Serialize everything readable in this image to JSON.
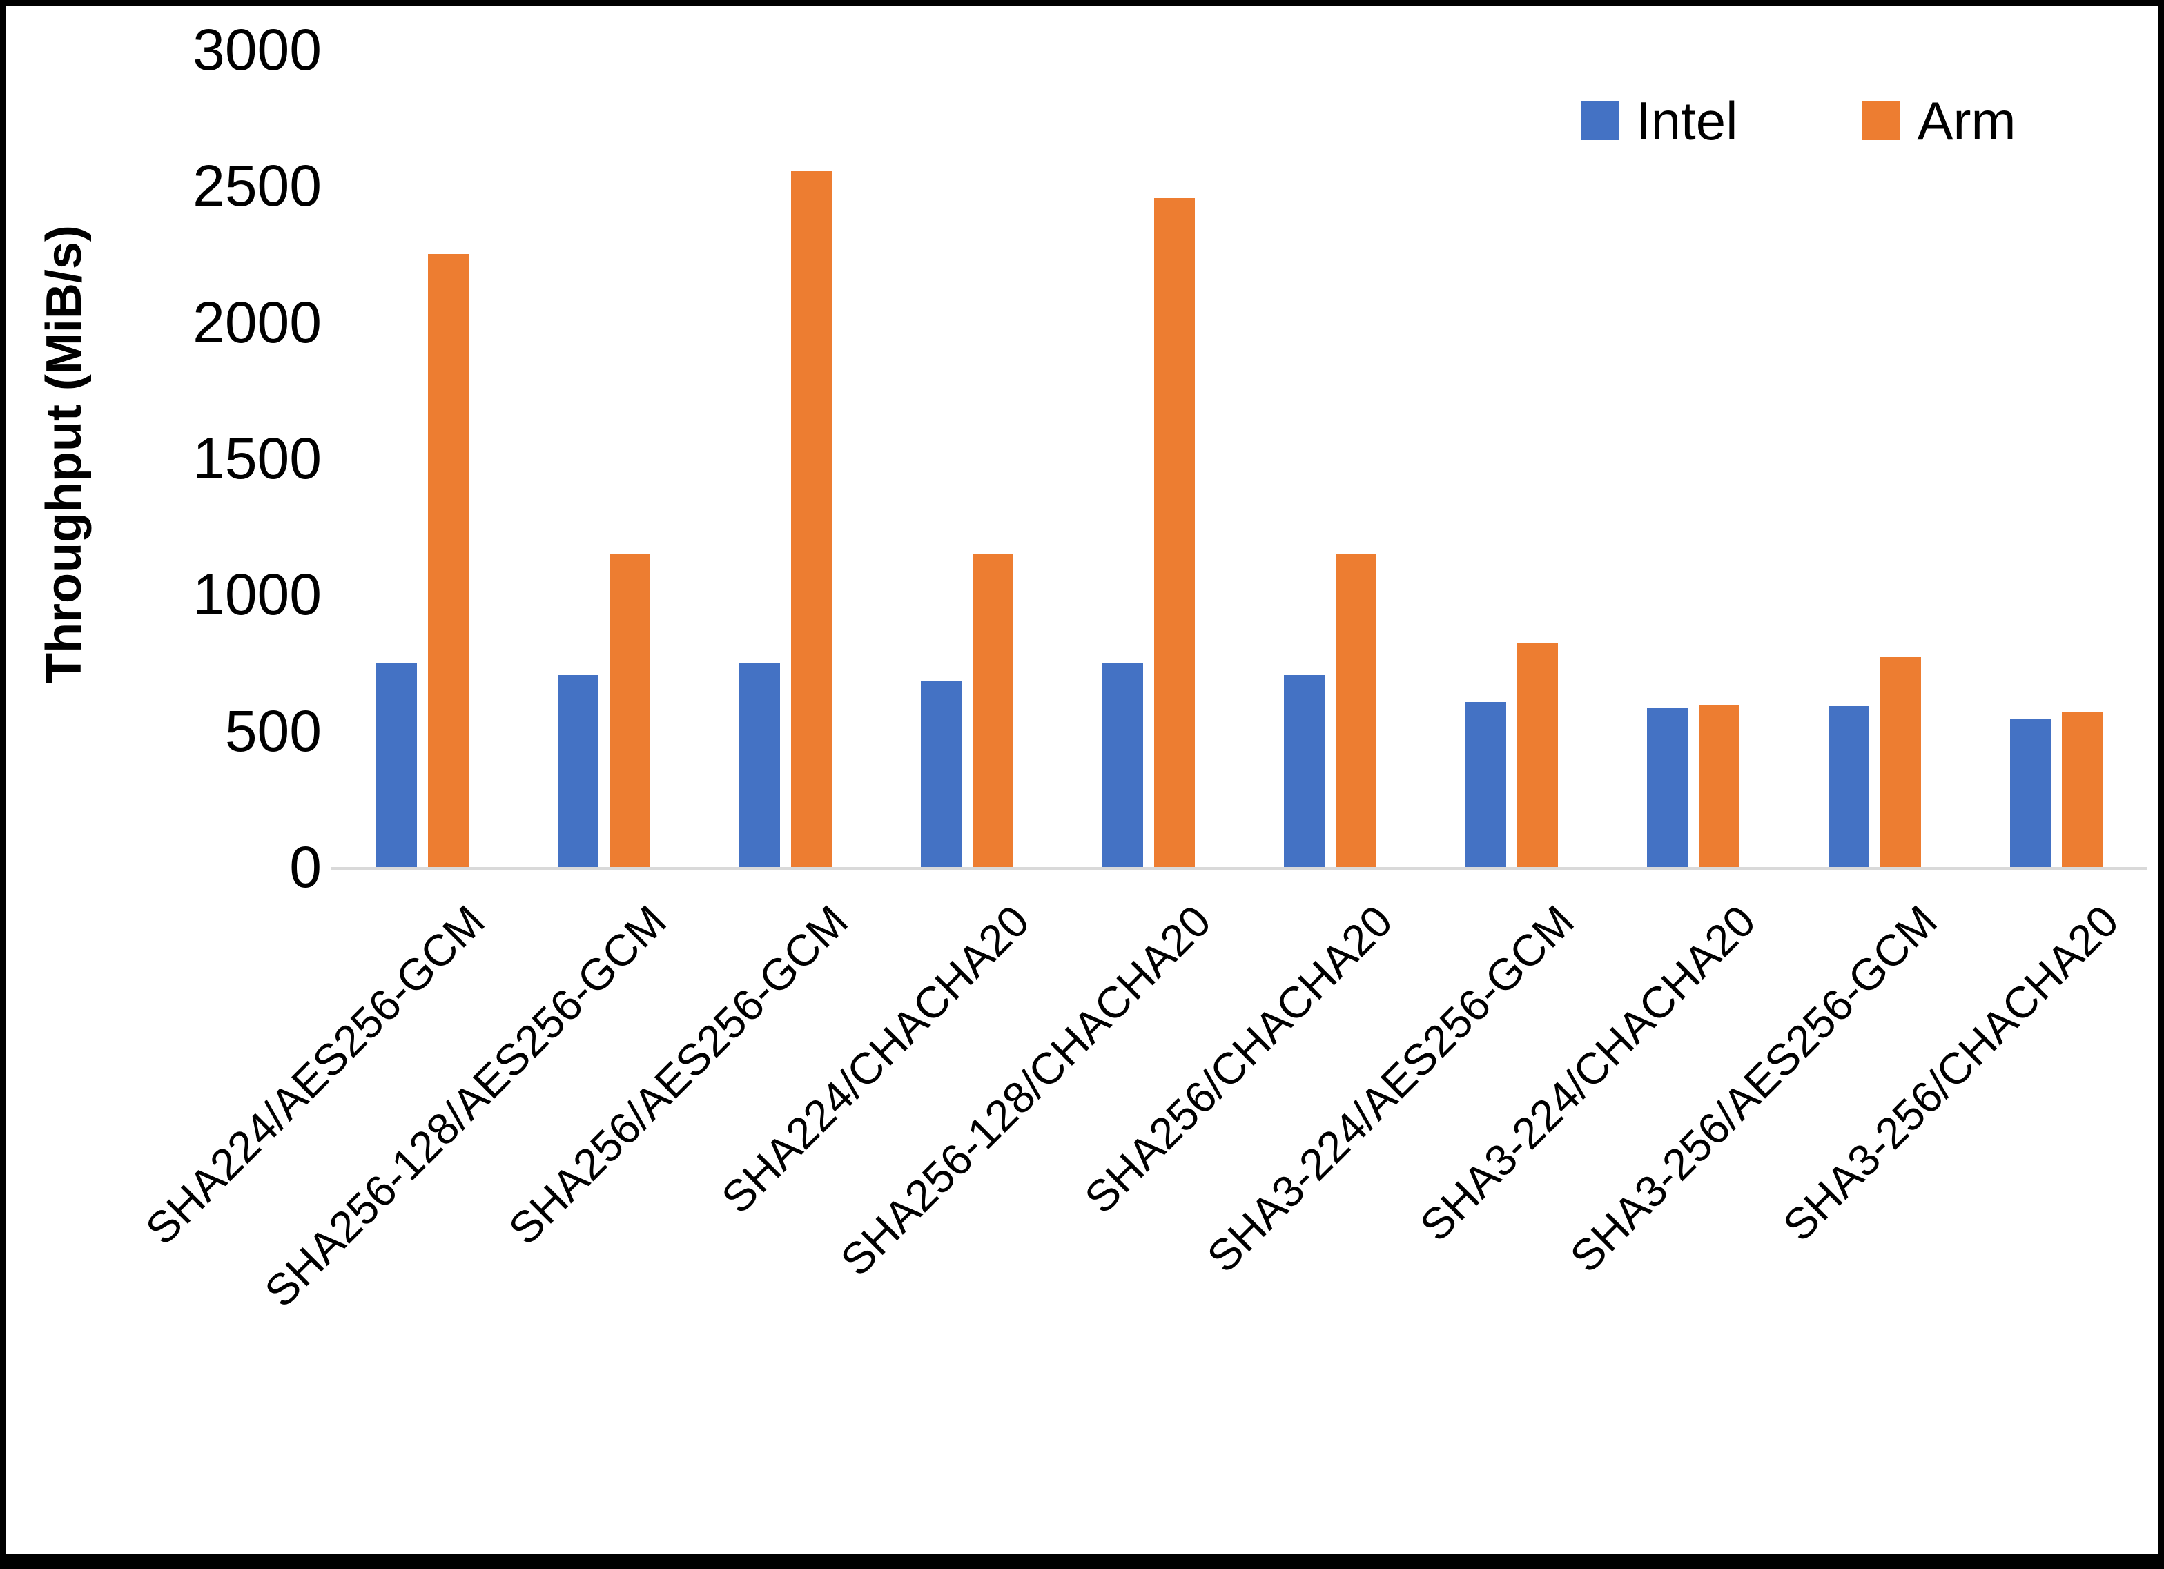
{
  "figure": {
    "background": "#ffffff",
    "frame_color": "#000000",
    "axis_line_color": "#d9d9d9"
  },
  "chart_data": {
    "type": "bar",
    "title": "",
    "xlabel": "",
    "ylabel": "Throughput (MiB/s)",
    "ylim": [
      0,
      3000
    ],
    "ytick_step": 500,
    "yticks": [
      "3000",
      "2500",
      "2000",
      "1500",
      "1000",
      "500",
      "0"
    ],
    "grid": false,
    "legend_position": "top-right",
    "categories": [
      "SHA224/AES256-GCM",
      "SHA256-128/AES256-GCM",
      "SHA256/AES256-GCM",
      "SHA224/CHACHA20",
      "SHA256-128/CHACHA20",
      "SHA256/CHACHA20",
      "SHA3-224/AES256-GCM",
      "SHA3-224/CHACHA20",
      "SHA3-256/AES256-GCM",
      "SHA3-256/CHACHA20"
    ],
    "series": [
      {
        "name": "Intel",
        "color": "#4472C4",
        "values": [
          750,
          705,
          750,
          685,
          750,
          705,
          605,
          585,
          590,
          545
        ]
      },
      {
        "name": "Arm",
        "color": "#ED7D31",
        "values": [
          2250,
          1150,
          2555,
          1148,
          2455,
          1150,
          820,
          595,
          770,
          570
        ]
      }
    ]
  }
}
